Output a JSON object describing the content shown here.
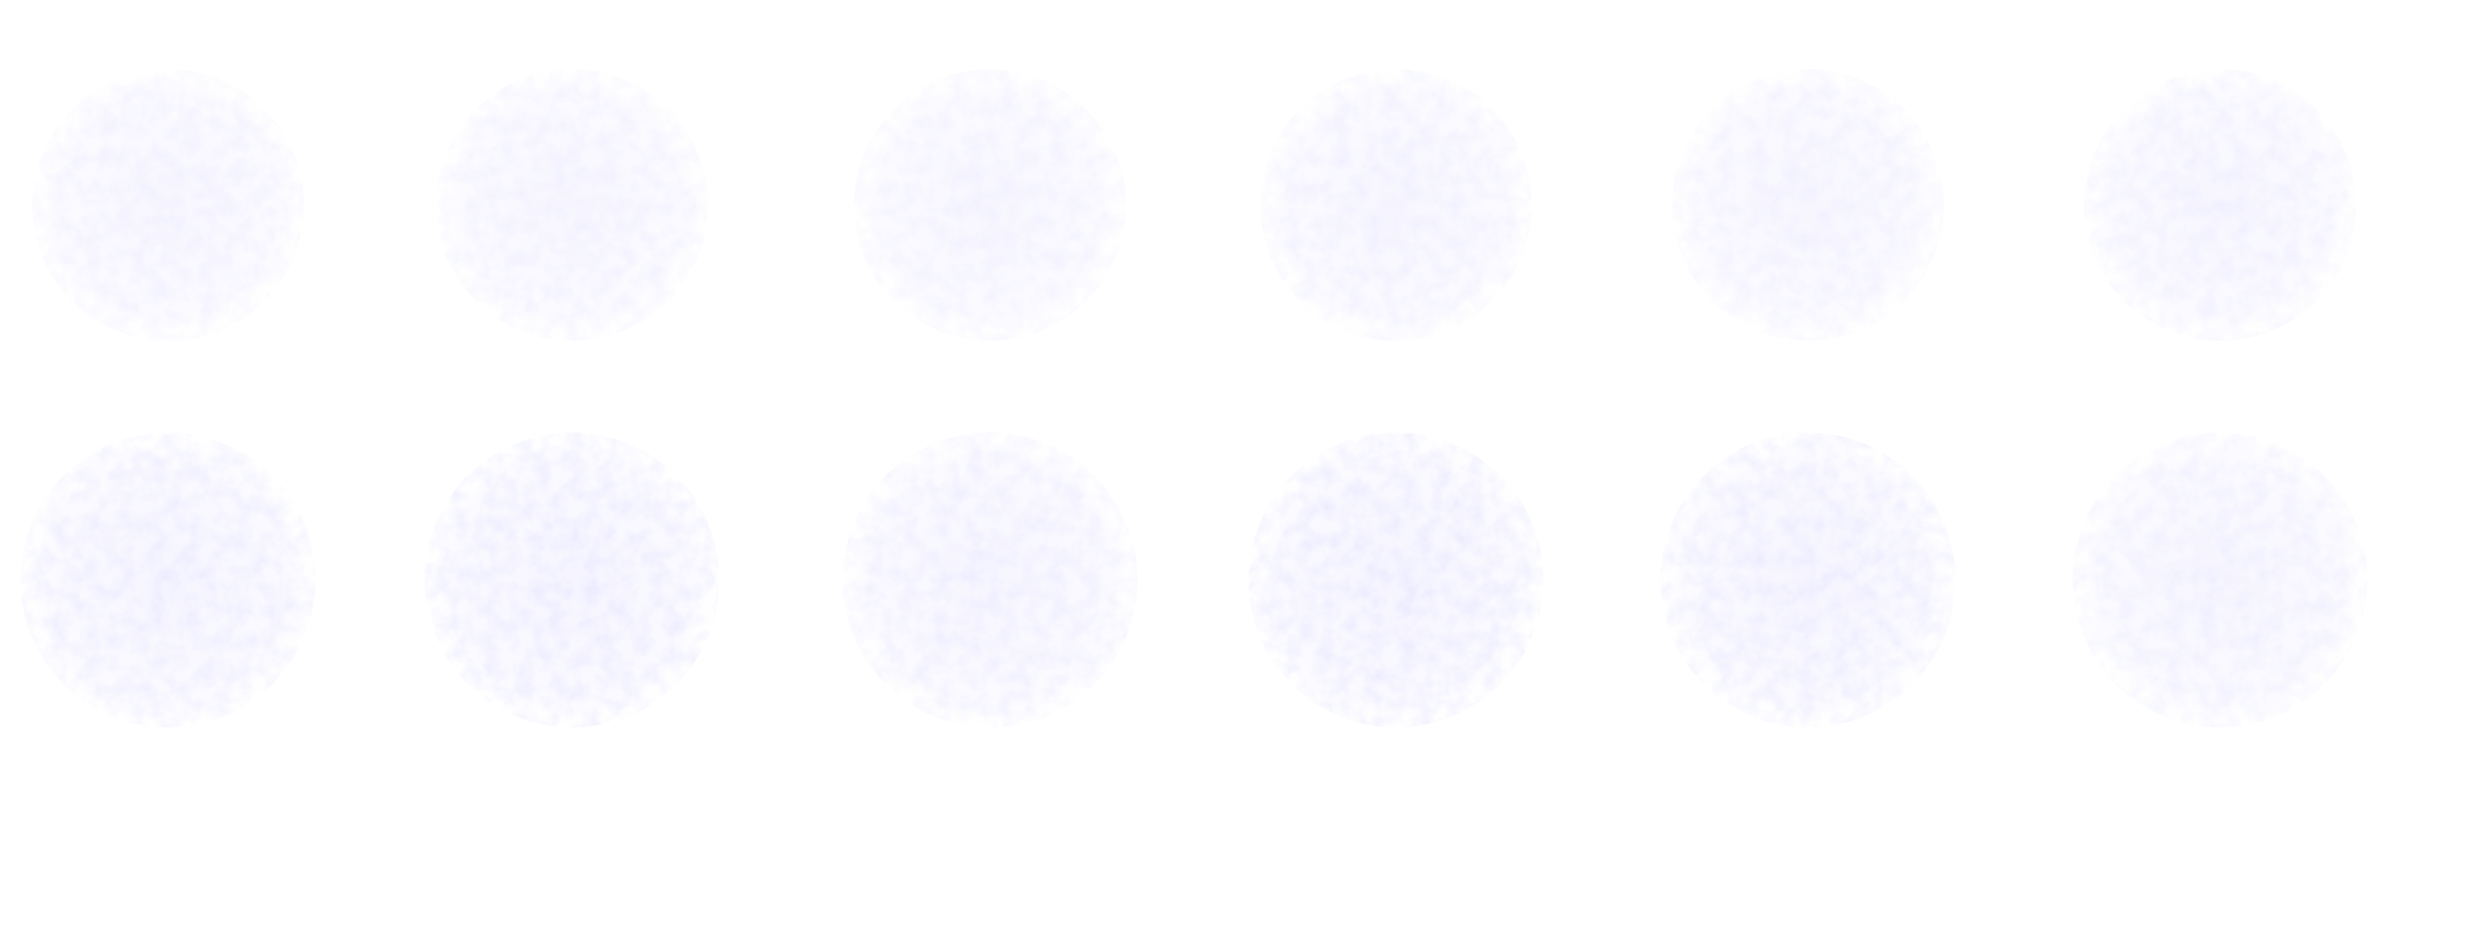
{
  "image": {
    "background_color": "#ffffff",
    "spot_color": "#6f6cff",
    "rows": 2,
    "columns": 6
  },
  "spots": [
    {
      "row": 1,
      "col": 1,
      "intensity": 0.3
    },
    {
      "row": 1,
      "col": 2,
      "intensity": 0.3
    },
    {
      "row": 1,
      "col": 3,
      "intensity": 0.28
    },
    {
      "row": 1,
      "col": 4,
      "intensity": 0.32
    },
    {
      "row": 1,
      "col": 5,
      "intensity": 0.3
    },
    {
      "row": 1,
      "col": 6,
      "intensity": 0.34
    },
    {
      "row": 2,
      "col": 1,
      "intensity": 0.45
    },
    {
      "row": 2,
      "col": 2,
      "intensity": 0.48
    },
    {
      "row": 2,
      "col": 3,
      "intensity": 0.4
    },
    {
      "row": 2,
      "col": 4,
      "intensity": 0.5
    },
    {
      "row": 2,
      "col": 5,
      "intensity": 0.47
    },
    {
      "row": 2,
      "col": 6,
      "intensity": 0.36
    }
  ]
}
